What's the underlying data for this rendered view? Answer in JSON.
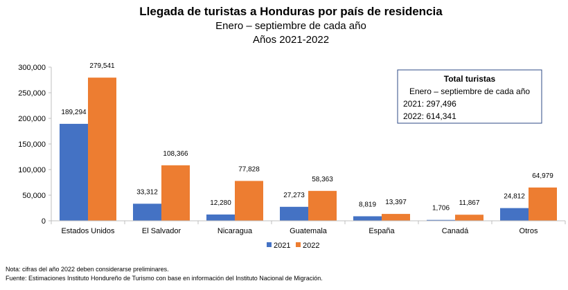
{
  "chart_data": {
    "type": "bar",
    "title": "Llegada de turistas a Honduras por país de residencia",
    "subtitle_1": "Enero – septiembre de cada año",
    "subtitle_2": "Años 2021-2022",
    "categories": [
      "Estados Unidos",
      "El Salvador",
      "Nicaragua",
      "Guatemala",
      "España",
      "Canadá",
      "Otros"
    ],
    "series": [
      {
        "name": "2021",
        "color": "#4472C4",
        "values": [
          189294,
          33312,
          12280,
          27273,
          8819,
          1706,
          24812
        ]
      },
      {
        "name": "2022",
        "color": "#ED7D31",
        "values": [
          279541,
          108366,
          77828,
          58363,
          13397,
          11867,
          64979
        ]
      }
    ],
    "ylim": [
      0,
      300000
    ],
    "yticks": [
      0,
      50000,
      100000,
      150000,
      200000,
      250000,
      300000
    ],
    "ytick_labels": [
      "0",
      "50,000",
      "100,000",
      "150,000",
      "200,000",
      "250,000",
      "300,000"
    ],
    "grid": false,
    "legend_position": "bottom",
    "xlabel": "",
    "ylabel": ""
  },
  "info_box": {
    "title": "Total turistas",
    "subtitle": "Enero – septiembre de cada año",
    "line_2021": "2021: 297,496",
    "line_2022": "2022: 614,341"
  },
  "notes": {
    "note": "Nota: cifras del año 2022 deben considerarse preliminares.",
    "source": "Fuente: Estimaciones Instituto Hondureño de Turismo con base en información del Instituto Nacional de Migración."
  }
}
